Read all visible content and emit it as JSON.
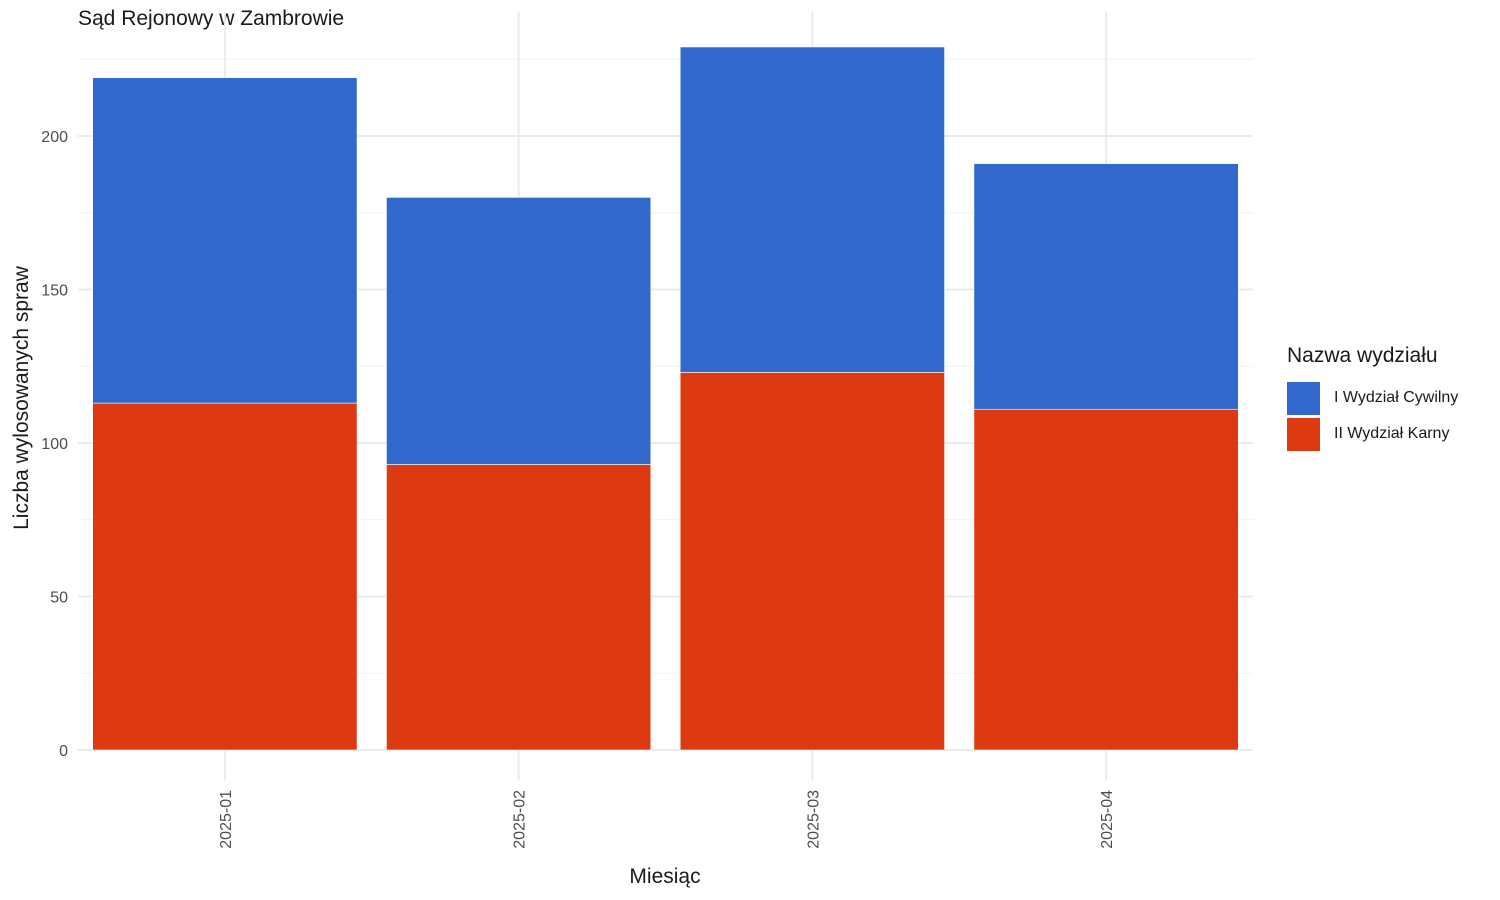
{
  "chart_data": {
    "type": "bar",
    "stacked": true,
    "title": "Sąd Rejonowy w Zambrowie",
    "xlabel": "Miesiąc",
    "ylabel": "Liczba wylosowanych spraw",
    "categories": [
      "2025-01",
      "2025-02",
      "2025-03",
      "2025-04"
    ],
    "series": [
      {
        "name": "II Wydział Karny",
        "color": "#DE3A12",
        "values": [
          113,
          93,
          123,
          111
        ]
      },
      {
        "name": "I Wydział Cywilny",
        "color": "#3267CC",
        "values": [
          106,
          87,
          106,
          80
        ]
      }
    ],
    "ylim": [
      0,
      240
    ],
    "yticks": [
      0,
      50,
      100,
      150,
      200
    ],
    "grid": true,
    "legend": {
      "title": "Nazwa wydziału",
      "position": "right",
      "items": [
        {
          "label": "I Wydział Cywilny",
          "color": "#3267CC"
        },
        {
          "label": "II Wydział Karny",
          "color": "#DE3A12"
        }
      ]
    }
  }
}
